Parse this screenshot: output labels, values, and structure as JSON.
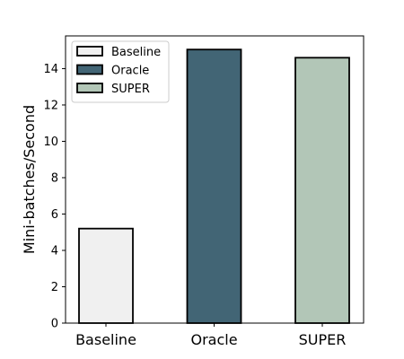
{
  "chart_data": {
    "type": "bar",
    "title": "",
    "xlabel": "",
    "ylabel": "Mini-batches/Second",
    "categories": [
      "Baseline",
      "Oracle",
      "SUPER"
    ],
    "values": [
      5.2,
      15.05,
      14.6
    ],
    "colors": [
      "#f0f0f0",
      "#426575",
      "#b2c6b7"
    ],
    "edge_color": "#000000",
    "ylim": [
      0,
      15.8
    ],
    "yticks": [
      0,
      2,
      4,
      6,
      8,
      10,
      12,
      14
    ],
    "grid": false,
    "legend": {
      "position": "top-left",
      "entries": [
        "Baseline",
        "Oracle",
        "SUPER"
      ]
    }
  }
}
